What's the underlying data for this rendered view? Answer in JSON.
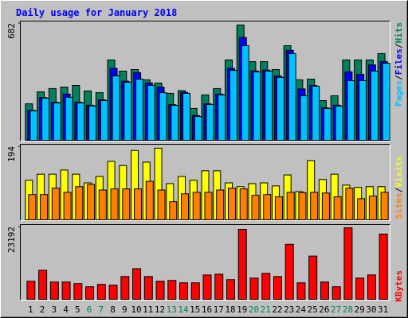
{
  "title": "Daily usage for January 2018",
  "legend_separator": "/",
  "chart_data": [
    {
      "type": "bar",
      "ylim": [
        0,
        682
      ],
      "yticks": [
        682
      ],
      "series": [
        {
          "name": "Hits",
          "color": "#00805c",
          "values": [
            213,
            283,
            302,
            311,
            320,
            288,
            278,
            469,
            404,
            413,
            353,
            334,
            274,
            290,
            186,
            265,
            302,
            469,
            673,
            459,
            459,
            413,
            552,
            353,
            357,
            232,
            260,
            469,
            469,
            469,
            506
          ]
        },
        {
          "name": "Files",
          "color": "#0000ff",
          "values": [
            175,
            250,
            222,
            270,
            222,
            205,
            236,
            420,
            345,
            395,
            335,
            310,
            208,
            280,
            145,
            213,
            270,
            420,
            600,
            405,
            410,
            375,
            525,
            300,
            320,
            190,
            205,
            400,
            385,
            440,
            460
          ]
        },
        {
          "name": "Pages",
          "color": "#00c0ff",
          "values": [
            172,
            246,
            218,
            251,
            218,
            200,
            232,
            376,
            339,
            357,
            320,
            278,
            204,
            274,
            139,
            209,
            265,
            408,
            552,
            399,
            404,
            367,
            506,
            260,
            316,
            186,
            200,
            348,
            348,
            404,
            450
          ]
        }
      ]
    },
    {
      "type": "bar",
      "ylim": [
        0,
        194
      ],
      "yticks": [
        194
      ],
      "series": [
        {
          "name": "Visits",
          "color": "#ffff00",
          "values": [
            105,
            121,
            121,
            132,
            121,
            98,
            115,
            155,
            144,
            184,
            153,
            190,
            96,
            115,
            105,
            130,
            130,
            98,
            88,
            96,
            98,
            90,
            119,
            75,
            157,
            107,
            121,
            92,
            86,
            88,
            88
          ]
        },
        {
          "name": "Sites",
          "color": "#ff8000",
          "values": [
            67,
            67,
            84,
            73,
            88,
            94,
            79,
            82,
            82,
            82,
            102,
            79,
            48,
            69,
            73,
            73,
            79,
            84,
            82,
            65,
            67,
            61,
            73,
            72,
            73,
            71,
            61,
            84,
            56,
            63,
            73
          ]
        }
      ]
    },
    {
      "type": "bar",
      "ylim": [
        0,
        23192
      ],
      "yticks": [
        23192
      ],
      "categories": [
        "1",
        "2",
        "3",
        "4",
        "5",
        "6",
        "7",
        "8",
        "9",
        "10",
        "11",
        "12",
        "13",
        "14",
        "15",
        "16",
        "17",
        "18",
        "19",
        "20",
        "21",
        "22",
        "23",
        "24",
        "25",
        "26",
        "27",
        "28",
        "29",
        "30",
        "31"
      ],
      "category_colors": [
        "#000000",
        "#000000",
        "#000000",
        "#000000",
        "#000000",
        "#00805c",
        "#00805c",
        "#000000",
        "#000000",
        "#000000",
        "#000000",
        "#000000",
        "#00805c",
        "#00805c",
        "#000000",
        "#000000",
        "#000000",
        "#000000",
        "#000000",
        "#00805c",
        "#00805c",
        "#000000",
        "#000000",
        "#000000",
        "#000000",
        "#000000",
        "#00805c",
        "#00805c",
        "#000000",
        "#000000",
        "#000000"
      ],
      "series": [
        {
          "name": "KBytes",
          "color": "#ff0000",
          "values": [
            5796,
            9324,
            5544,
            5544,
            5040,
            4032,
            4788,
            4536,
            7308,
            9828,
            7308,
            5796,
            6048,
            5292,
            5292,
            7812,
            8064,
            6300,
            22428,
            6804,
            8316,
            7308,
            17640,
            5292,
            13860,
            5544,
            4032,
            22932,
            6804,
            7812,
            20916
          ]
        }
      ]
    }
  ]
}
